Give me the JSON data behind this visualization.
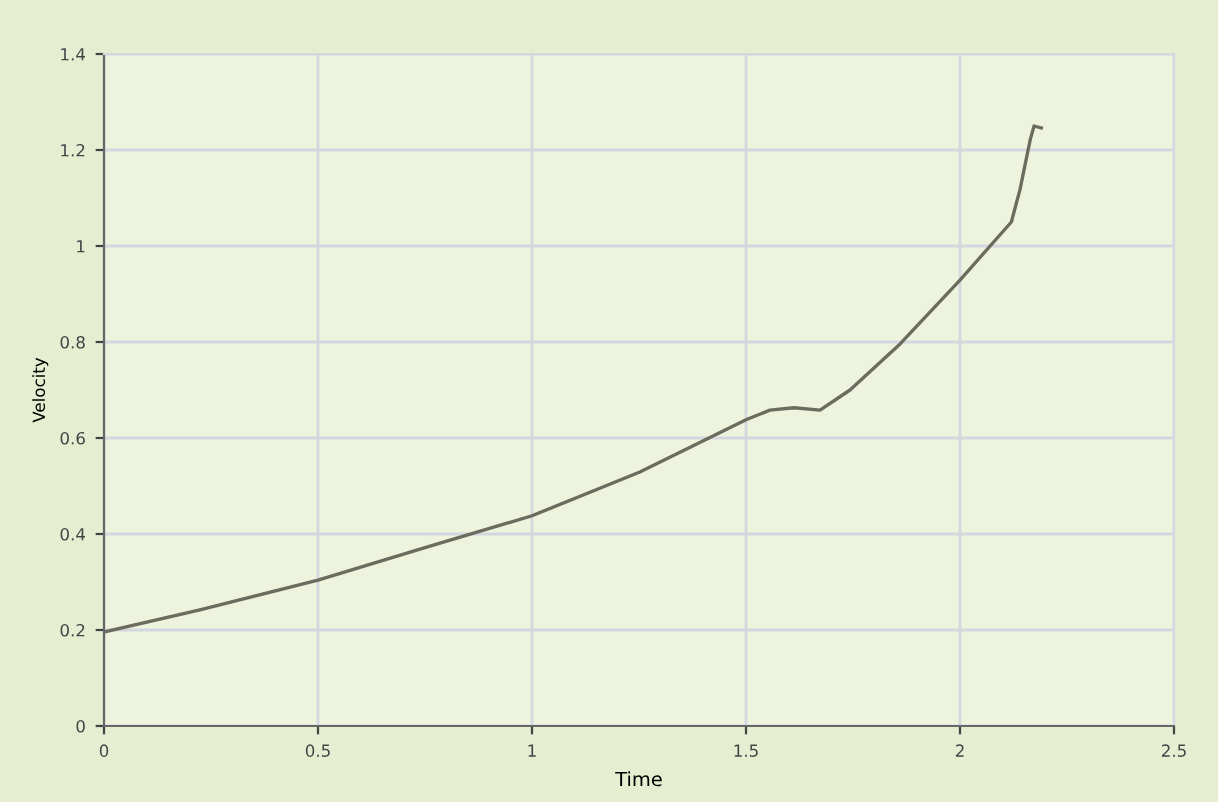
{
  "chart_data": {
    "type": "line",
    "xlabel": "Time",
    "ylabel": "Velocity",
    "series": [
      {
        "color": "#6b6b5e",
        "x": [
          0,
          0.224,
          0.5,
          0.748,
          1.0,
          1.252,
          1.5,
          1.556,
          1.612,
          1.673,
          1.743,
          1.86,
          2.0,
          2.12,
          2.14,
          2.164,
          2.173,
          2.19
        ],
        "values": [
          0.196,
          0.242,
          0.304,
          0.371,
          0.438,
          0.529,
          0.638,
          0.658,
          0.663,
          0.658,
          0.7,
          0.796,
          0.929,
          1.05,
          1.117,
          1.221,
          1.25,
          1.246
        ]
      }
    ],
    "xlim": [
      0,
      2.5
    ],
    "ylim": [
      0,
      1.4
    ],
    "xticks": [
      0,
      0.5,
      1,
      1.5,
      2,
      2.5
    ],
    "yticks": [
      0,
      0.2,
      0.4,
      0.6,
      0.8,
      1,
      1.2,
      1.4
    ],
    "grid": true,
    "marker": "none",
    "line_style": "solid",
    "legend": false
  }
}
